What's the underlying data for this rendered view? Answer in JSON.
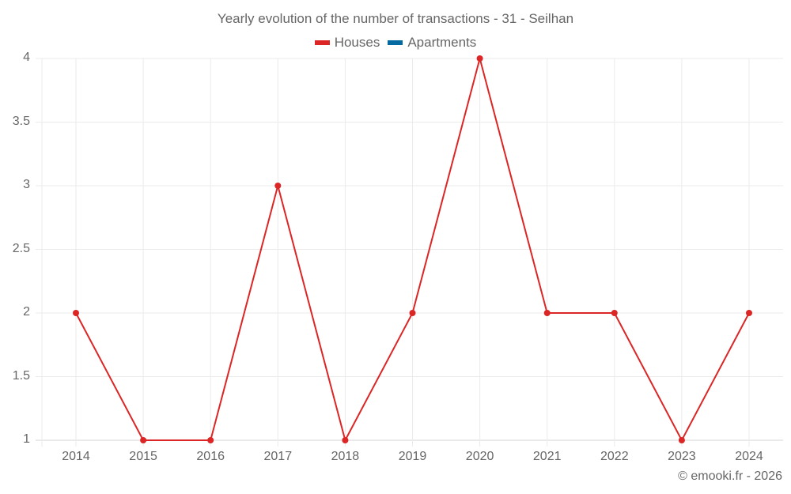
{
  "chart_data": {
    "type": "line",
    "title": "Yearly evolution of the number of transactions - 31 - Seilhan",
    "xlabel": "",
    "ylabel": "",
    "categories": [
      "2014",
      "2015",
      "2016",
      "2017",
      "2018",
      "2019",
      "2020",
      "2021",
      "2022",
      "2023",
      "2024"
    ],
    "series": [
      {
        "name": "Houses",
        "color": "#dc2626",
        "values": [
          2,
          1,
          1,
          3,
          1,
          2,
          4,
          2,
          2,
          1,
          2
        ]
      },
      {
        "name": "Apartments",
        "color": "#0369a1",
        "values": []
      }
    ],
    "ylim": [
      1,
      4
    ],
    "yticks": [
      "1",
      "1.5",
      "2",
      "2.5",
      "3",
      "3.5",
      "4"
    ],
    "grid": true,
    "legend_position": "top"
  },
  "legend": {
    "houses": "Houses",
    "apartments": "Apartments"
  },
  "credit": "© emooki.fr - 2026"
}
